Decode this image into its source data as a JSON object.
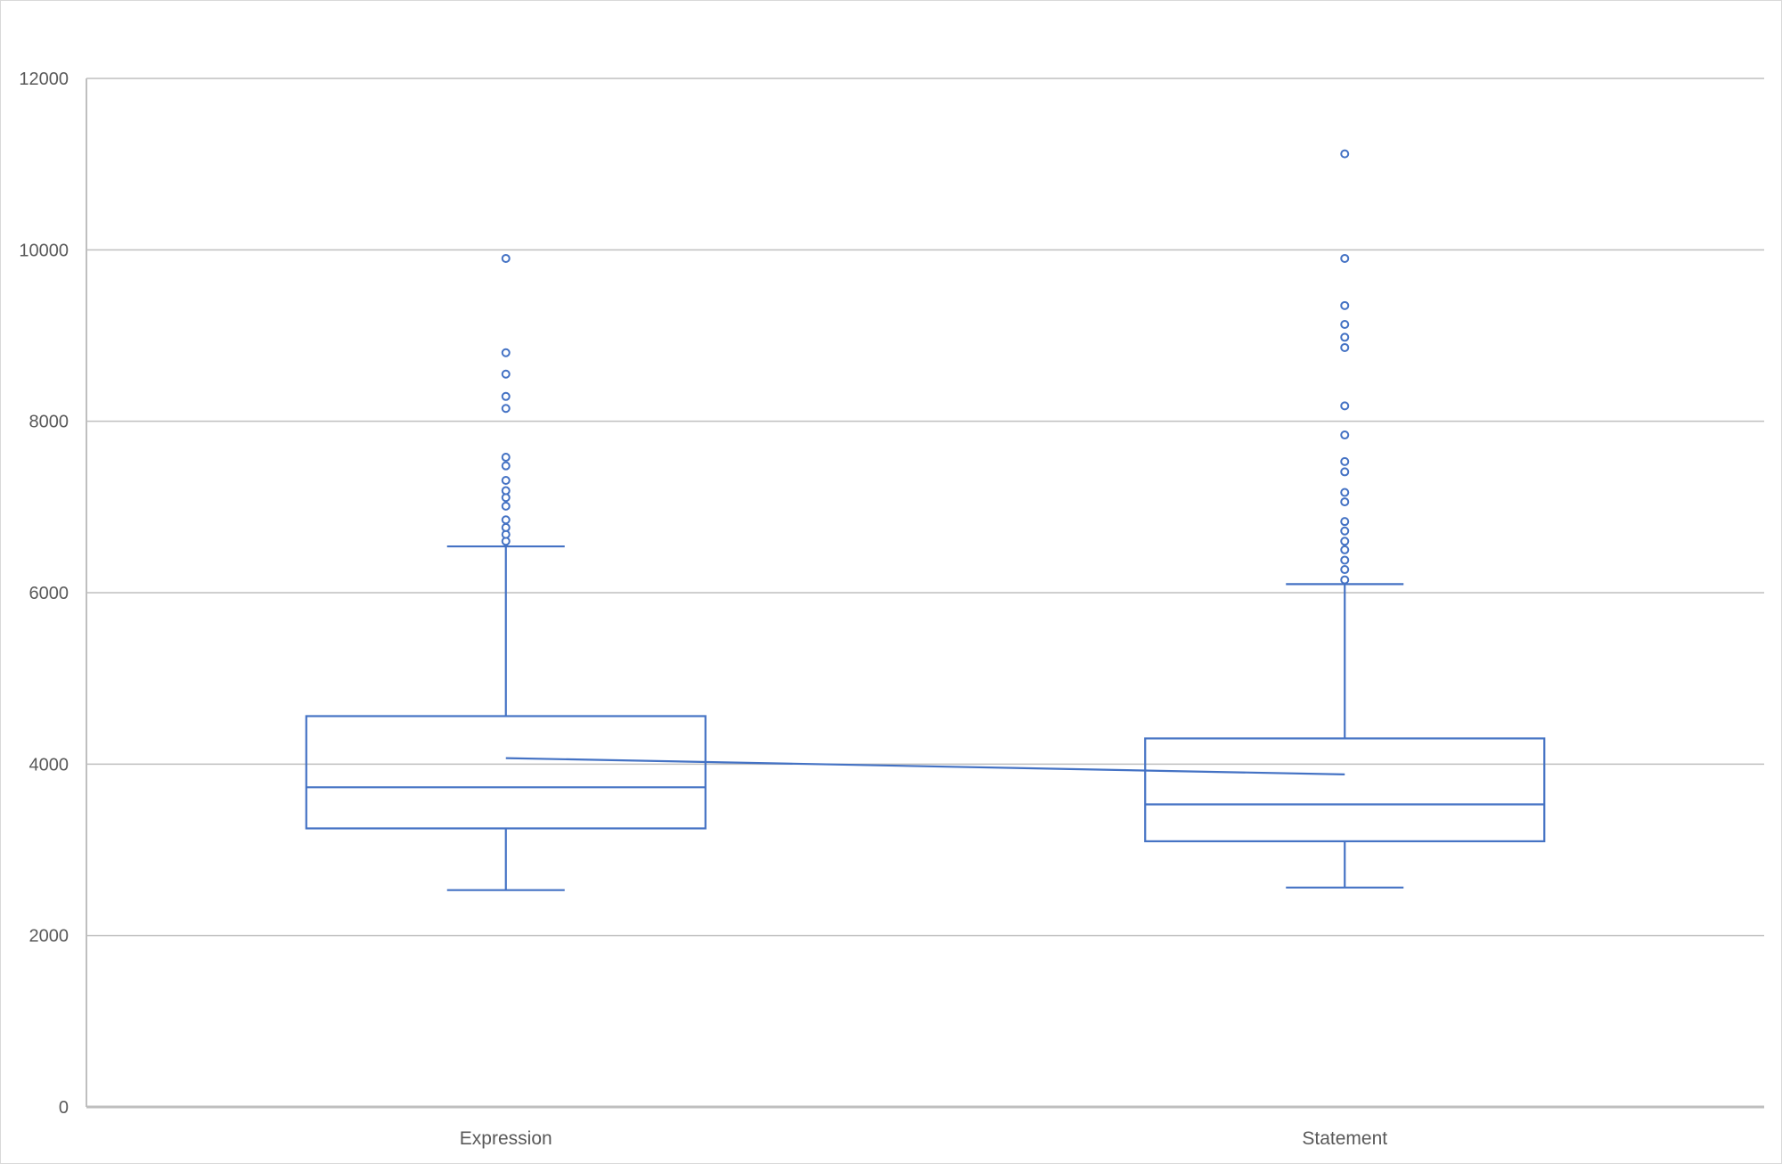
{
  "chart_data": {
    "type": "box",
    "title": "",
    "xlabel": "",
    "ylabel": "",
    "ylim": [
      0,
      12000
    ],
    "yticks": [
      0,
      2000,
      4000,
      6000,
      8000,
      10000,
      12000
    ],
    "grid": true,
    "legend": "none",
    "series_color": "#4472c4",
    "categories": [
      "Expression",
      "Statement"
    ],
    "boxes": [
      {
        "category": "Expression",
        "whisker_low": 2530,
        "q1": 3250,
        "median": 3730,
        "q3": 4560,
        "whisker_high": 6540,
        "mean": 4070,
        "outliers": [
          6600,
          6680,
          6760,
          6850,
          7010,
          7110,
          7190,
          7310,
          7480,
          7580,
          8150,
          8290,
          8550,
          8800,
          9900
        ]
      },
      {
        "category": "Statement",
        "whisker_low": 2560,
        "q1": 3100,
        "median": 3530,
        "q3": 4300,
        "whisker_high": 6100,
        "mean": 3880,
        "outliers": [
          6150,
          6270,
          6380,
          6500,
          6600,
          6720,
          6830,
          7060,
          7170,
          7410,
          7530,
          7840,
          8180,
          8860,
          8980,
          9130,
          9350,
          9900,
          11120
        ]
      }
    ]
  }
}
